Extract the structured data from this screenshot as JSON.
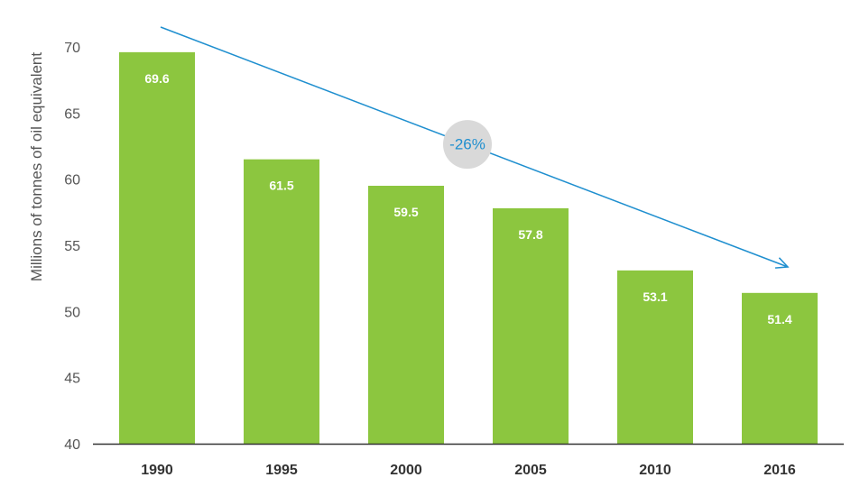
{
  "chart_data": {
    "type": "bar",
    "categories": [
      "1990",
      "1995",
      "2000",
      "2005",
      "2010",
      "2016"
    ],
    "values": [
      69.6,
      61.5,
      59.5,
      57.8,
      53.1,
      51.4
    ],
    "value_labels": [
      "69.6",
      "61.5",
      "59.5",
      "57.8",
      "53.1",
      "51.4"
    ],
    "title": "",
    "xlabel": "",
    "ylabel": "Millions of tonnes of oil equivalent",
    "ylim": [
      40,
      70
    ],
    "yticks": [
      "40",
      "45",
      "50",
      "55",
      "60",
      "65",
      "70"
    ],
    "grid": false,
    "annotation": {
      "text": "-26%",
      "type": "trend-arrow"
    },
    "colors": {
      "bar": "#8cc63f",
      "arrow": "#1f8fcf",
      "badge": "#d9d9d9",
      "axis": "#333333"
    }
  }
}
